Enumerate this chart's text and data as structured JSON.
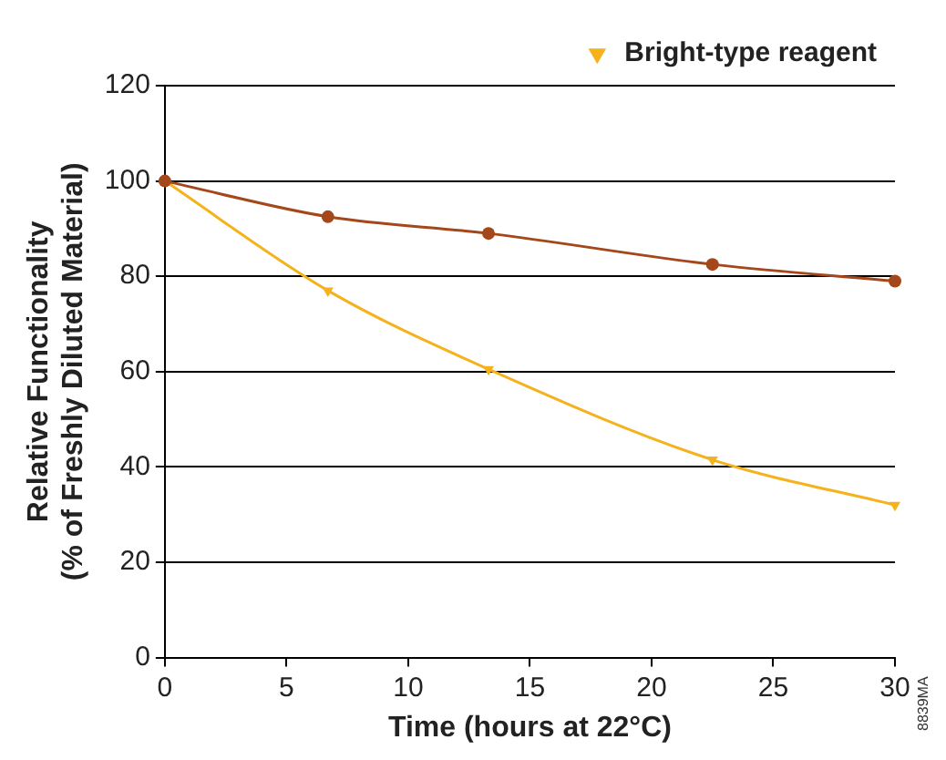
{
  "chart_data": {
    "type": "line",
    "xlabel": "Time (hours at 22°C)",
    "ylabel": "Relative Functionality\n(% of Freshly Diluted Material)",
    "annotations": [
      "8839MA"
    ],
    "series": [
      {
        "color": "#a4471b",
        "marker": "circle",
        "x": [
          0,
          6.7,
          13.3,
          22.5,
          30
        ],
        "values": [
          100,
          92.5,
          89,
          82.5,
          79
        ]
      },
      {
        "name": "Bright-type reagent",
        "color": "#f5b21c",
        "marker": "triangle",
        "x": [
          0,
          6.7,
          13.3,
          22.5,
          30
        ],
        "values": [
          100,
          77,
          60.5,
          41.5,
          32
        ]
      }
    ],
    "xlim": [
      0,
      30
    ],
    "xticks": [
      0,
      5,
      10,
      15,
      20,
      25,
      30
    ],
    "ylim": [
      0,
      120
    ],
    "yticks": [
      0,
      20,
      40,
      60,
      80,
      100,
      120
    ],
    "grid": "y",
    "legend": "top right"
  }
}
